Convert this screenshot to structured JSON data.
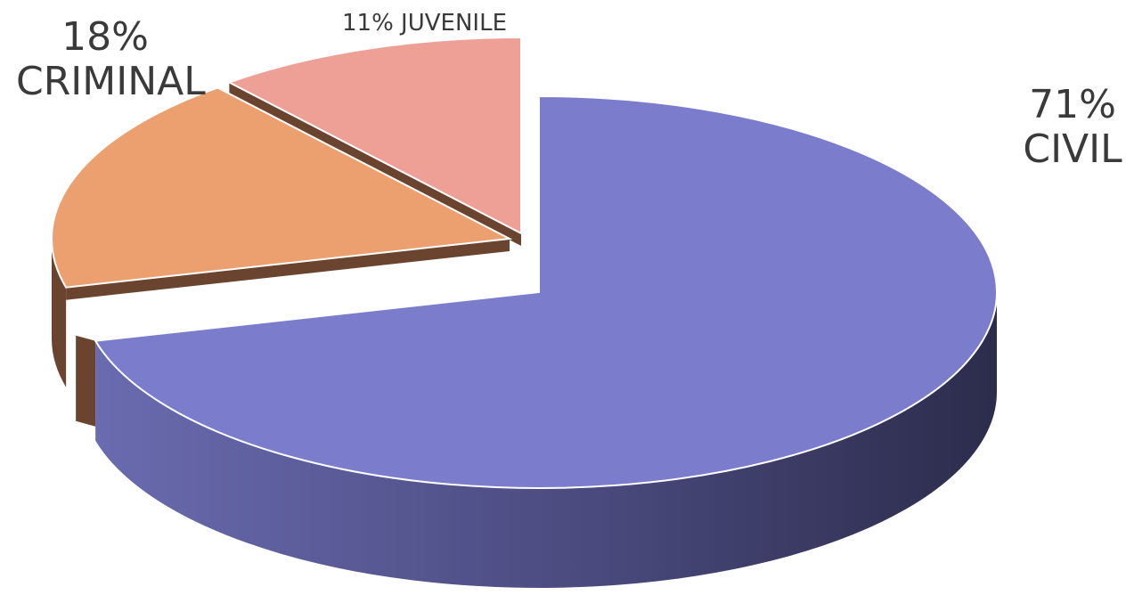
{
  "chart_data": {
    "type": "pie",
    "style": "3d-exploded",
    "slices": [
      {
        "label": "CIVIL",
        "value": 71,
        "value_label": "71%",
        "color": "#7b7ccc",
        "side_color": "#4a4a85"
      },
      {
        "label": "CRIMINAL",
        "value": 18,
        "value_label": "18%",
        "color": "#eca06f",
        "side_color": "#6b4430"
      },
      {
        "label": "JUVENILE",
        "value": 11,
        "value_label": "11%",
        "color": "#eea097",
        "side_color": "#6b4430"
      }
    ]
  },
  "labels": {
    "criminal_pct": "18%",
    "criminal_name": "CRIMINAL",
    "civil_pct": "71%",
    "civil_name": "CIVIL",
    "juvenile": "11% JUVENILE"
  }
}
